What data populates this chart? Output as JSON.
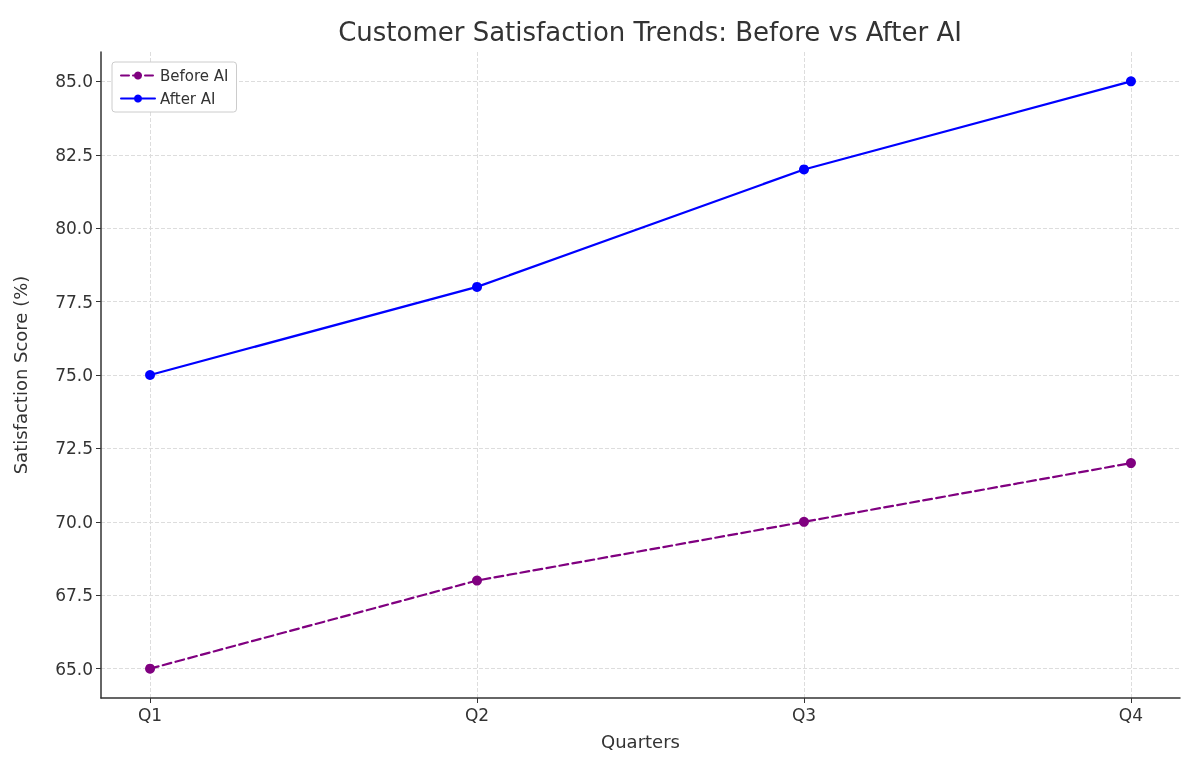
{
  "chart_data": {
    "type": "line",
    "title": "Customer Satisfaction Trends: Before vs After AI",
    "xlabel": "Quarters",
    "ylabel": "Satisfaction Score (%)",
    "categories": [
      "Q1",
      "Q2",
      "Q3",
      "Q4"
    ],
    "series": [
      {
        "name": "Before AI",
        "color": "#800080",
        "values": [
          65,
          68,
          70,
          72
        ],
        "line_style": "dashed"
      },
      {
        "name": "After AI",
        "color": "#0000ff",
        "values": [
          75,
          78,
          82,
          85
        ],
        "line_style": "solid"
      }
    ],
    "ylim": [
      64,
      86
    ],
    "yticks": [
      {
        "value": 65,
        "label": "65.0"
      },
      {
        "value": 67.5,
        "label": "67.5"
      },
      {
        "value": 70,
        "label": "70.0"
      },
      {
        "value": 72.5,
        "label": "72.5"
      },
      {
        "value": 75,
        "label": "75.0"
      },
      {
        "value": 77.5,
        "label": "77.5"
      },
      {
        "value": 80,
        "label": "80.0"
      },
      {
        "value": 82.5,
        "label": "82.5"
      },
      {
        "value": 85,
        "label": "85.0"
      }
    ],
    "grid": true,
    "legend": "top left",
    "marker": "circle"
  }
}
